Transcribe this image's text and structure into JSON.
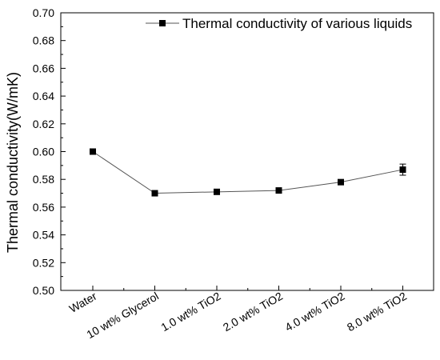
{
  "chart_data": {
    "type": "line",
    "title": "",
    "xlabel": "",
    "ylabel": "Thermal conductivity(W/mK)",
    "categories": [
      "Water",
      "10 wt% Glycerol",
      "1.0 wt% TiO2",
      "2.0 wt% TiO2",
      "4.0 wt% TiO2",
      "8.0 wt% TiO2"
    ],
    "series": [
      {
        "name": "Thermal conductivity of various liquids",
        "values": [
          0.6,
          0.57,
          0.571,
          0.572,
          0.578,
          0.587
        ],
        "errors": [
          0.0,
          0.0,
          0.0,
          0.0,
          0.0,
          0.004
        ],
        "marker": "square",
        "color": "#000000"
      }
    ],
    "ylim": [
      0.5,
      0.7
    ],
    "yticks": [
      "0.50",
      "0.52",
      "0.54",
      "0.56",
      "0.58",
      "0.60",
      "0.62",
      "0.64",
      "0.66",
      "0.68",
      "0.70"
    ],
    "grid": false,
    "legend": "top-right"
  }
}
